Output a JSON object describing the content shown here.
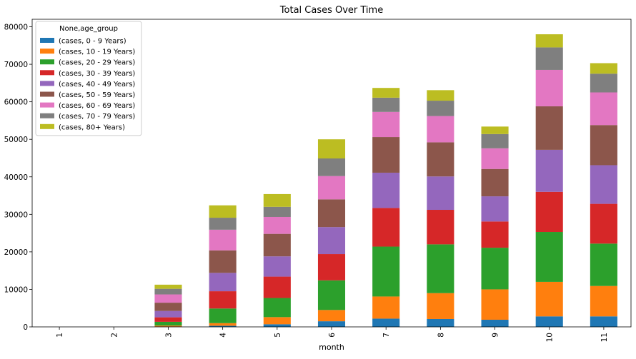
{
  "chart_data": {
    "type": "bar",
    "stacked": true,
    "title": "Total Cases Over Time",
    "xlabel": "month",
    "ylabel": "",
    "ylim": [
      0,
      82000
    ],
    "yticks": [
      0,
      10000,
      20000,
      30000,
      40000,
      50000,
      60000,
      70000,
      80000
    ],
    "categories": [
      "1",
      "2",
      "3",
      "4",
      "5",
      "6",
      "7",
      "8",
      "9",
      "10",
      "11"
    ],
    "legend": {
      "title": "None,age_group",
      "placement": "top-left"
    },
    "series": [
      {
        "name": "(cases, 0 - 9 Years)",
        "color": "#1f77b4",
        "values": [
          0,
          0,
          100,
          300,
          700,
          1500,
          2200,
          2100,
          1900,
          2800,
          2800
        ]
      },
      {
        "name": "(cases, 10 - 19 Years)",
        "color": "#ff7f0e",
        "values": [
          0,
          0,
          250,
          700,
          1900,
          3000,
          5900,
          6900,
          8100,
          9200,
          8100
        ]
      },
      {
        "name": "(cases, 20 - 29 Years)",
        "color": "#2ca02c",
        "values": [
          0,
          0,
          1000,
          3900,
          5100,
          7900,
          13300,
          13000,
          11100,
          13300,
          11300
        ]
      },
      {
        "name": "(cases, 30 - 39 Years)",
        "color": "#d62728",
        "values": [
          0,
          0,
          1200,
          4600,
          5700,
          7000,
          10300,
          9200,
          7000,
          10700,
          10600
        ]
      },
      {
        "name": "(cases, 40 - 49 Years)",
        "color": "#9467bd",
        "values": [
          0,
          0,
          1700,
          4900,
          5400,
          7200,
          9400,
          8900,
          6700,
          11200,
          10300
        ]
      },
      {
        "name": "(cases, 50 - 59 Years)",
        "color": "#8c564b",
        "values": [
          0,
          0,
          2200,
          6000,
          6000,
          7400,
          9500,
          9100,
          7300,
          11600,
          10700
        ]
      },
      {
        "name": "(cases, 60 - 69 Years)",
        "color": "#e377c2",
        "values": [
          0,
          0,
          2200,
          5500,
          4500,
          6200,
          6700,
          7000,
          5500,
          9700,
          8700
        ]
      },
      {
        "name": "(cases, 70 - 79 Years)",
        "color": "#7f7f7f",
        "values": [
          0,
          0,
          1500,
          3200,
          2700,
          4700,
          3800,
          4100,
          3800,
          6000,
          5000
        ]
      },
      {
        "name": "(cases, 80+ Years)",
        "color": "#bcbd22",
        "values": [
          0,
          0,
          1100,
          3300,
          3400,
          5100,
          2600,
          2800,
          2000,
          3500,
          2800
        ]
      }
    ]
  }
}
